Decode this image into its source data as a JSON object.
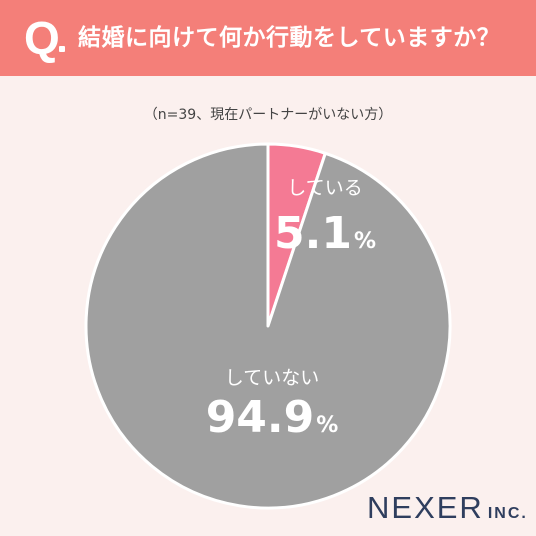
{
  "header": {
    "q_mark": "Q",
    "question": "結婚に向けて何か行動をしていますか？"
  },
  "sample_note": "（n=39、現在パートナーがいない方）",
  "chart_data": {
    "type": "pie",
    "title": "",
    "slices": [
      {
        "label": "している",
        "value": 5.1,
        "value_text": "5.1",
        "unit": "%",
        "color": "#f47a94"
      },
      {
        "label": "していない",
        "value": 94.9,
        "value_text": "94.9",
        "unit": "%",
        "color": "#a0a0a0"
      }
    ]
  },
  "logo": {
    "main": "NEXER",
    "inc": "INC."
  }
}
